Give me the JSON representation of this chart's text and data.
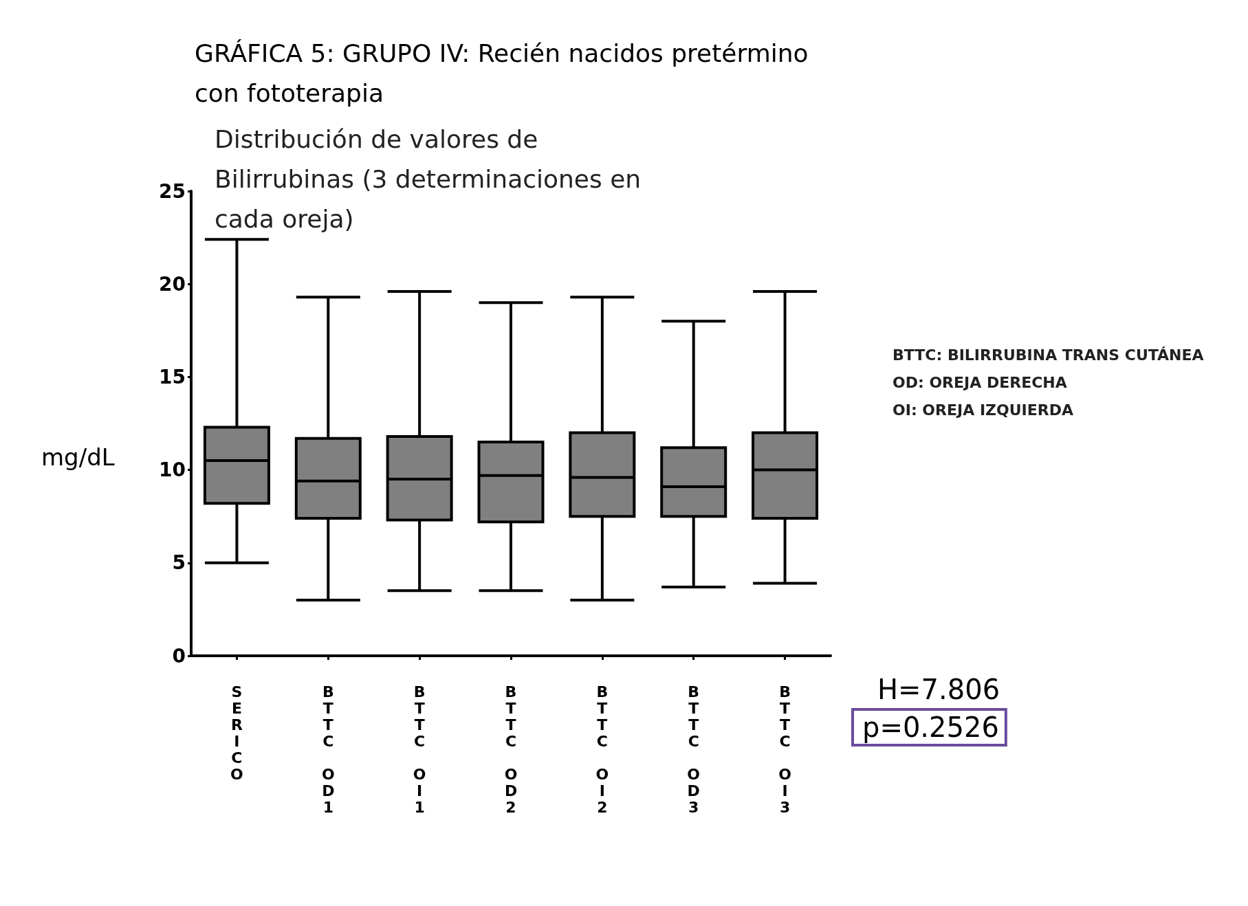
{
  "chart_data": {
    "type": "box",
    "title": "GRÁFICA 5: GRUPO IV: Recién nacidos pretérmino con fototerapia",
    "subtitle": "Distribución de valores de Bilirrubinas (3 determinaciones en cada oreja)",
    "ylabel": "mg/dL",
    "categories": [
      "SERICO",
      "BTTC OD1",
      "BTTC OI1",
      "BTTC OD2",
      "BTTC OI2",
      "BTTC OD3",
      "BTTC OI3"
    ],
    "series": [
      {
        "color": "#808080",
        "boxes": [
          {
            "low": 5.0,
            "q1": 8.2,
            "median": 10.5,
            "q3": 12.3,
            "high": 22.4
          },
          {
            "low": 3.0,
            "q1": 7.4,
            "median": 9.4,
            "q3": 11.7,
            "high": 19.3
          },
          {
            "low": 3.5,
            "q1": 7.3,
            "median": 9.5,
            "q3": 11.8,
            "high": 19.6
          },
          {
            "low": 3.5,
            "q1": 7.2,
            "median": 9.7,
            "q3": 11.5,
            "high": 19.0
          },
          {
            "low": 3.0,
            "q1": 7.5,
            "median": 9.6,
            "q3": 12.0,
            "high": 19.3
          },
          {
            "low": 3.7,
            "q1": 7.5,
            "median": 9.1,
            "q3": 11.2,
            "high": 18.0
          },
          {
            "low": 3.9,
            "q1": 7.4,
            "median": 10.0,
            "q3": 12.0,
            "high": 19.6
          }
        ]
      }
    ],
    "ylim": [
      0,
      25
    ],
    "yticks": [
      0,
      5,
      10,
      15,
      20,
      25
    ],
    "grid": false,
    "annotations": [
      "BTTC: BILIRRUBINA TRANS CUTÁNEA",
      "OD: OREJA DERECHA",
      "OI: OREJA IZQUIERDA",
      "H=7.806",
      "p=0.2526"
    ]
  }
}
